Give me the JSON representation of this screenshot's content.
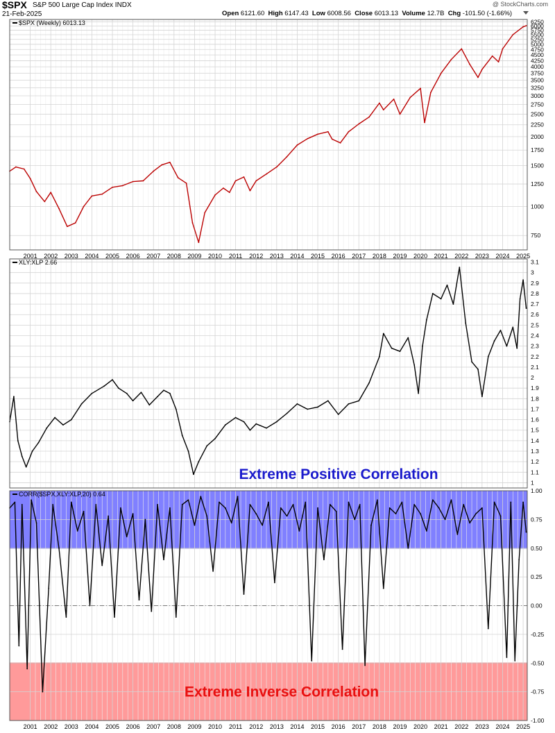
{
  "header": {
    "symbol": "$SPX",
    "name": "S&P 500 Large Cap Index",
    "exchange": "INDX",
    "date": "21-Feb-2025",
    "open_label": "Open",
    "open": "6121.60",
    "high_label": "High",
    "high": "6147.43",
    "low_label": "Low",
    "low": "6008.56",
    "close_label": "Close",
    "close": "6013.13",
    "volume_label": "Volume",
    "volume": "12.7B",
    "chg_label": "Chg",
    "chg": "-101.50 (-1.66%)",
    "brand": "@ StockCharts.com"
  },
  "colors": {
    "price": "#bb0000",
    "line": "#000000",
    "grid": "#d4d4d4",
    "positive_band": "#8080ff",
    "inverse_band": "#ff9a9a",
    "positive_text": "#1a1acc",
    "inverse_text": "#e81010"
  },
  "chart_data": [
    {
      "type": "line",
      "legend": "$SPX (Weekly) 6013.13",
      "y_scale": "log",
      "ylim": [
        650,
        6400
      ],
      "y_ticks": [
        750,
        1000,
        1250,
        1500,
        1750,
        2000,
        2250,
        2500,
        2750,
        3000,
        3250,
        3500,
        3750,
        4000,
        4250,
        4500,
        4750,
        5000,
        5250,
        5500,
        5750,
        6000,
        6250
      ],
      "x_ticks": [
        "2001",
        "2002",
        "2003",
        "2004",
        "2005",
        "2006",
        "2007",
        "2008",
        "2009",
        "2010",
        "2011",
        "2012",
        "2013",
        "2014",
        "2015",
        "2016",
        "2017",
        "2018",
        "2019",
        "2020",
        "2021",
        "2022",
        "2023",
        "2024",
        "2025"
      ],
      "x": [
        2000.0,
        2000.3,
        2000.7,
        2001.0,
        2001.3,
        2001.7,
        2002.0,
        2002.4,
        2002.8,
        2003.2,
        2003.6,
        2004.0,
        2004.5,
        2005.0,
        2005.5,
        2006.0,
        2006.5,
        2007.0,
        2007.4,
        2007.8,
        2008.2,
        2008.6,
        2008.9,
        2009.2,
        2009.5,
        2010.0,
        2010.4,
        2010.7,
        2011.0,
        2011.4,
        2011.7,
        2012.0,
        2012.5,
        2013.0,
        2013.5,
        2014.0,
        2014.5,
        2015.0,
        2015.5,
        2015.7,
        2016.1,
        2016.5,
        2017.0,
        2017.5,
        2018.0,
        2018.2,
        2018.7,
        2019.0,
        2019.5,
        2020.0,
        2020.2,
        2020.5,
        2021.0,
        2021.5,
        2022.0,
        2022.4,
        2022.8,
        2023.0,
        2023.5,
        2023.8,
        2024.0,
        2024.5,
        2025.0,
        2025.15
      ],
      "values": [
        1420,
        1480,
        1450,
        1320,
        1160,
        1050,
        1150,
        980,
        820,
        850,
        1000,
        1110,
        1130,
        1210,
        1230,
        1280,
        1290,
        1420,
        1510,
        1550,
        1330,
        1260,
        850,
        700,
        940,
        1120,
        1200,
        1150,
        1290,
        1340,
        1170,
        1290,
        1380,
        1480,
        1640,
        1840,
        1960,
        2050,
        2100,
        1950,
        1880,
        2100,
        2270,
        2430,
        2790,
        2610,
        2900,
        2500,
        2950,
        3230,
        2300,
        3100,
        3750,
        4300,
        4780,
        4100,
        3600,
        3900,
        4450,
        4200,
        4780,
        5500,
        5950,
        6013
      ]
    },
    {
      "type": "line",
      "legend": "XLY:XLP 2.66",
      "ylim": [
        0.95,
        3.13
      ],
      "y_ticks": [
        1.0,
        1.1,
        1.2,
        1.3,
        1.4,
        1.5,
        1.6,
        1.7,
        1.8,
        1.9,
        2.0,
        2.1,
        2.2,
        2.3,
        2.4,
        2.5,
        2.6,
        2.7,
        2.8,
        2.9,
        3.0,
        3.1
      ],
      "x_ticks": [
        "2001",
        "2002",
        "2003",
        "2004",
        "2005",
        "2006",
        "2007",
        "2008",
        "2009",
        "2010",
        "2011",
        "2012",
        "2013",
        "2014",
        "2015",
        "2016",
        "2017",
        "2018",
        "2019",
        "2020",
        "2021",
        "2022",
        "2023",
        "2024",
        "2025"
      ],
      "x": [
        2000.0,
        2000.2,
        2000.4,
        2000.6,
        2000.8,
        2001.1,
        2001.4,
        2001.8,
        2002.2,
        2002.6,
        2003.0,
        2003.5,
        2004.0,
        2004.6,
        2005.0,
        2005.3,
        2005.7,
        2006.0,
        2006.4,
        2006.8,
        2007.2,
        2007.5,
        2007.8,
        2008.1,
        2008.4,
        2008.7,
        2008.95,
        2009.2,
        2009.6,
        2010.0,
        2010.5,
        2011.0,
        2011.4,
        2011.7,
        2012.0,
        2012.5,
        2013.0,
        2013.5,
        2014.0,
        2014.5,
        2015.0,
        2015.5,
        2016.0,
        2016.5,
        2017.0,
        2017.5,
        2018.0,
        2018.2,
        2018.6,
        2019.0,
        2019.4,
        2019.7,
        2019.9,
        2020.1,
        2020.3,
        2020.6,
        2021.0,
        2021.3,
        2021.6,
        2021.9,
        2022.2,
        2022.5,
        2022.8,
        2023.0,
        2023.3,
        2023.6,
        2023.9,
        2024.2,
        2024.5,
        2024.7,
        2024.85,
        2025.0,
        2025.15
      ],
      "values": [
        1.58,
        1.82,
        1.4,
        1.25,
        1.15,
        1.3,
        1.38,
        1.52,
        1.62,
        1.55,
        1.6,
        1.75,
        1.85,
        1.92,
        1.98,
        1.9,
        1.85,
        1.78,
        1.86,
        1.74,
        1.82,
        1.88,
        1.85,
        1.7,
        1.45,
        1.3,
        1.08,
        1.2,
        1.35,
        1.42,
        1.55,
        1.62,
        1.58,
        1.5,
        1.56,
        1.52,
        1.58,
        1.66,
        1.75,
        1.7,
        1.72,
        1.78,
        1.65,
        1.75,
        1.78,
        1.95,
        2.2,
        2.42,
        2.28,
        2.25,
        2.38,
        2.12,
        1.85,
        2.3,
        2.55,
        2.8,
        2.75,
        2.88,
        2.7,
        3.05,
        2.52,
        2.15,
        2.08,
        1.82,
        2.2,
        2.35,
        2.45,
        2.3,
        2.48,
        2.28,
        2.75,
        2.93,
        2.66
      ]
    },
    {
      "type": "line",
      "legend": "CORR($SPX,XLY:XLP,20) 0.64",
      "ylim": [
        -1.0,
        1.0
      ],
      "y_ticks": [
        -1.0,
        -0.75,
        -0.5,
        -0.25,
        0.0,
        0.25,
        0.5,
        0.75,
        1.0
      ],
      "y_tick_labels": [
        "-1.00",
        "-0.75",
        "-0.50",
        "-0.25",
        "0.00",
        "0.25",
        "0.50",
        "0.75",
        "1.00"
      ],
      "x_ticks": [
        "2001",
        "2002",
        "2003",
        "2004",
        "2005",
        "2006",
        "2007",
        "2008",
        "2009",
        "2010",
        "2011",
        "2012",
        "2013",
        "2014",
        "2015",
        "2016",
        "2017",
        "2018",
        "2019",
        "2020",
        "2021",
        "2022",
        "2023",
        "2024",
        "2025"
      ],
      "x": [
        2000.0,
        2000.25,
        2000.45,
        2000.6,
        2000.85,
        2001.05,
        2001.3,
        2001.6,
        2001.9,
        2002.1,
        2002.4,
        2002.75,
        2003.0,
        2003.3,
        2003.6,
        2003.9,
        2004.2,
        2004.5,
        2004.8,
        2005.1,
        2005.4,
        2005.7,
        2006.0,
        2006.3,
        2006.6,
        2006.9,
        2007.2,
        2007.5,
        2007.8,
        2008.1,
        2008.4,
        2008.7,
        2009.0,
        2009.3,
        2009.6,
        2009.9,
        2010.2,
        2010.5,
        2010.8,
        2011.1,
        2011.4,
        2011.7,
        2012.0,
        2012.3,
        2012.6,
        2012.9,
        2013.2,
        2013.5,
        2013.8,
        2014.1,
        2014.4,
        2014.7,
        2015.0,
        2015.3,
        2015.6,
        2015.9,
        2016.2,
        2016.5,
        2016.8,
        2017.05,
        2017.3,
        2017.6,
        2017.9,
        2018.2,
        2018.5,
        2018.8,
        2019.1,
        2019.4,
        2019.7,
        2020.0,
        2020.3,
        2020.6,
        2020.9,
        2021.2,
        2021.5,
        2021.8,
        2022.1,
        2022.4,
        2022.7,
        2023.0,
        2023.3,
        2023.6,
        2023.9,
        2024.2,
        2024.4,
        2024.6,
        2024.8,
        2025.0,
        2025.15
      ],
      "values": [
        0.85,
        0.9,
        -0.35,
        0.88,
        -0.55,
        0.92,
        0.72,
        -0.75,
        0.15,
        0.88,
        0.5,
        -0.1,
        0.9,
        0.65,
        0.82,
        0.0,
        0.88,
        0.35,
        0.78,
        -0.1,
        0.85,
        0.6,
        0.8,
        0.05,
        0.75,
        -0.05,
        0.88,
        0.4,
        0.85,
        -0.1,
        0.88,
        0.92,
        0.7,
        0.95,
        0.78,
        0.3,
        0.9,
        0.85,
        0.72,
        0.95,
        0.1,
        0.88,
        0.8,
        0.7,
        0.9,
        0.2,
        0.85,
        0.78,
        0.88,
        0.65,
        0.9,
        -0.48,
        0.85,
        0.4,
        0.88,
        0.82,
        -0.38,
        0.9,
        0.75,
        0.88,
        -0.52,
        0.7,
        0.92,
        0.15,
        0.85,
        0.8,
        0.9,
        0.5,
        0.88,
        0.8,
        0.65,
        0.92,
        0.85,
        0.75,
        0.92,
        0.62,
        0.88,
        0.72,
        0.8,
        0.85,
        -0.2,
        0.9,
        0.78,
        -0.45,
        0.9,
        -0.48,
        0.4,
        0.9,
        0.64
      ],
      "bands": [
        {
          "label": "Extreme Positive Correlation",
          "from": 0.5,
          "to": 1.0
        },
        {
          "label": "Extreme Inverse Correlation",
          "from": -1.0,
          "to": -0.5
        }
      ]
    }
  ]
}
